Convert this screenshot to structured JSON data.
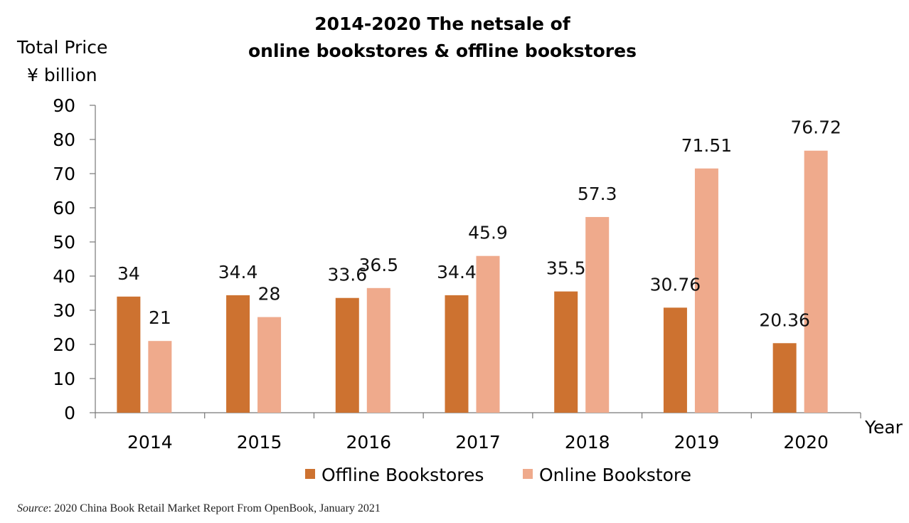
{
  "chart_data": {
    "type": "bar",
    "title": [
      "2014-2020 The netsale of",
      "online bookstores & offline bookstores"
    ],
    "ylabel": [
      "Total Price",
      "¥ billion"
    ],
    "xlabel": "Year",
    "categories": [
      "2014",
      "2015",
      "2016",
      "2017",
      "2018",
      "2019",
      "2020"
    ],
    "series": [
      {
        "name": "Offline Bookstores",
        "color": "#cd7230",
        "values": [
          34,
          34.4,
          33.6,
          34.4,
          35.5,
          30.76,
          20.36
        ],
        "labels": [
          "34",
          "34.4",
          "33.6",
          "34.4",
          "35.5",
          "30.76",
          "20.36"
        ]
      },
      {
        "name": "Online Bookstore",
        "color": "#efaa8c",
        "values": [
          21,
          28,
          36.5,
          45.9,
          57.3,
          71.51,
          76.72
        ],
        "labels": [
          "21",
          "28",
          "36.5",
          "45.9",
          "57.3",
          "71.51",
          "76.72"
        ]
      }
    ],
    "ylim": [
      0,
      90
    ],
    "yticks": [
      0,
      10,
      20,
      30,
      40,
      50,
      60,
      70,
      80,
      90
    ],
    "grid": false,
    "legend": "bottom-center"
  },
  "source": {
    "label": "Source",
    "text": ": 2020 China Book Retail Market Report From OpenBook, January 2021"
  }
}
